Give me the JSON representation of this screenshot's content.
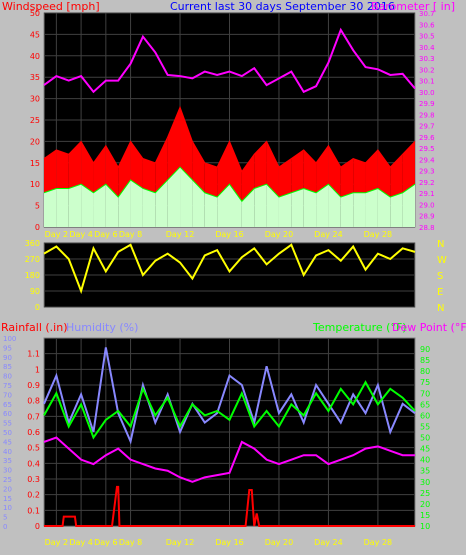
{
  "colors": {
    "background": "#c0c0c0",
    "plot_bg": "#000000",
    "grid": "#404040",
    "title_blue": "#0000ff",
    "red": "#ff0000",
    "magenta": "#ff00ff",
    "green": "#00ff00",
    "light_green": "#ccffcc",
    "gray": "#a0a0a0",
    "yellow": "#ffff00",
    "blue_violet": "#8888ff",
    "day_label_yellow": "#ffff00",
    "compass_yellow": "#ffff00"
  },
  "chart_data": [
    {
      "type": "line",
      "panel": "wind-barometer",
      "title": "Current last 30 days September 30 2016",
      "left_label": "Windspeed [mph]",
      "right_label": "Barometer [ in]",
      "x_tick_labels": [
        "Day 2",
        "Day 4",
        "Day 6",
        "Day 8",
        "Day 12",
        "Day 16",
        "Day 20",
        "Day 24",
        "Day 28"
      ],
      "x_tick_days": [
        2,
        4,
        6,
        8,
        12,
        16,
        20,
        24,
        28
      ],
      "xlim": [
        1,
        31
      ],
      "left_axis": {
        "ylim": [
          0,
          50
        ],
        "ticks": [
          0,
          5,
          10,
          15,
          20,
          25,
          30,
          35,
          40,
          45,
          50
        ]
      },
      "right_axis": {
        "ylim": [
          28.8,
          30.7
        ],
        "ticks": [
          28.8,
          28.9,
          29.0,
          29.1,
          29.2,
          29.3,
          29.4,
          29.5,
          29.6,
          29.7,
          29.8,
          29.9,
          30.0,
          30.1,
          30.2,
          30.3,
          30.4,
          30.5,
          30.6,
          30.7
        ]
      },
      "series": [
        {
          "name": "Barometer",
          "axis": "right",
          "color": "#ff00ff",
          "x": [
            1,
            2,
            3,
            4,
            5,
            6,
            7,
            8,
            9,
            10,
            11,
            12,
            13,
            14,
            15,
            16,
            17,
            18,
            19,
            20,
            21,
            22,
            23,
            24,
            25,
            26,
            27,
            28,
            29,
            30,
            31
          ],
          "values": [
            30.06,
            30.14,
            30.1,
            30.14,
            30.0,
            30.1,
            30.1,
            30.25,
            30.49,
            30.35,
            30.15,
            30.14,
            30.12,
            30.18,
            30.15,
            30.18,
            30.14,
            30.21,
            30.06,
            30.12,
            30.18,
            30.0,
            30.05,
            30.26,
            30.55,
            30.37,
            30.22,
            30.2,
            30.15,
            30.16,
            30.03
          ]
        },
        {
          "name": "Windspeed gust",
          "axis": "left",
          "color": "#ff0000",
          "x": [
            1,
            2,
            3,
            4,
            5,
            6,
            7,
            8,
            9,
            10,
            11,
            12,
            13,
            14,
            15,
            16,
            17,
            18,
            19,
            20,
            21,
            22,
            23,
            24,
            25,
            26,
            27,
            28,
            29,
            30,
            31
          ],
          "values": [
            16,
            18,
            17,
            20,
            15,
            19,
            14,
            20,
            16,
            15,
            21,
            28,
            20,
            15,
            14,
            20,
            13,
            17,
            20,
            14,
            16,
            18,
            15,
            19,
            14,
            16,
            15,
            18,
            14,
            17,
            20
          ]
        },
        {
          "name": "Windspeed average",
          "axis": "left",
          "color": "#00ff00",
          "x": [
            1,
            2,
            3,
            4,
            5,
            6,
            7,
            8,
            9,
            10,
            11,
            12,
            13,
            14,
            15,
            16,
            17,
            18,
            19,
            20,
            21,
            22,
            23,
            24,
            25,
            26,
            27,
            28,
            29,
            30,
            31
          ],
          "values": [
            8,
            9,
            9,
            10,
            8,
            10,
            7,
            11,
            9,
            8,
            11,
            14,
            11,
            8,
            7,
            10,
            6,
            9,
            10,
            7,
            8,
            9,
            8,
            10,
            7,
            8,
            8,
            9,
            7,
            8,
            10
          ]
        }
      ]
    },
    {
      "type": "line",
      "panel": "wind-direction",
      "xlim": [
        1,
        31
      ],
      "ylim": [
        0,
        360
      ],
      "y_ticks": [
        0,
        90,
        180,
        270,
        360
      ],
      "compass_labels": [
        "N",
        "W",
        "S",
        "E",
        "N"
      ],
      "series": [
        {
          "name": "Wind direction",
          "color": "#ffff00",
          "x": [
            1,
            2,
            3,
            4,
            5,
            6,
            7,
            8,
            9,
            10,
            11,
            12,
            13,
            14,
            15,
            16,
            17,
            18,
            19,
            20,
            21,
            22,
            23,
            24,
            25,
            26,
            27,
            28,
            29,
            30,
            31
          ],
          "values": [
            300,
            340,
            270,
            90,
            330,
            200,
            310,
            350,
            180,
            260,
            300,
            250,
            160,
            290,
            320,
            200,
            280,
            330,
            240,
            300,
            350,
            180,
            290,
            320,
            260,
            340,
            210,
            300,
            270,
            330,
            310
          ]
        }
      ]
    },
    {
      "type": "line",
      "panel": "rain-humidity-temperature",
      "labels": [
        "Rainfall (.in)",
        "Humidity (%)",
        "Temperature (°F)",
        "Dew Point (°F)"
      ],
      "x_tick_labels": [
        "Day 2",
        "Day 4",
        "Day 6",
        "Day 8",
        "Day 12",
        "Day 16",
        "Day 20",
        "Day 24",
        "Day 28"
      ],
      "x_tick_days": [
        2,
        4,
        6,
        8,
        12,
        16,
        20,
        24,
        28
      ],
      "xlim": [
        1,
        31
      ],
      "rain_axis": {
        "ylim": [
          0,
          1.2
        ],
        "ticks": [
          0,
          0.1,
          0.2,
          0.3,
          0.4,
          0.5,
          0.6,
          0.7,
          0.8,
          0.9,
          1,
          1.1
        ]
      },
      "humidity_axis": {
        "ylim": [
          0,
          100
        ],
        "ticks": [
          0,
          5,
          10,
          15,
          20,
          25,
          30,
          35,
          40,
          45,
          50,
          55,
          60,
          65,
          70,
          75,
          80,
          85,
          90,
          95,
          100
        ]
      },
      "temperature_axis": {
        "ylim": [
          10,
          95
        ],
        "ticks": [
          10,
          15,
          20,
          25,
          30,
          35,
          40,
          45,
          50,
          55,
          60,
          65,
          70,
          75,
          80,
          85,
          90
        ]
      },
      "series": [
        {
          "name": "Humidity",
          "axis": "humidity",
          "color": "#8888ff",
          "x": [
            1,
            2,
            3,
            4,
            5,
            6,
            7,
            8,
            9,
            10,
            11,
            12,
            13,
            14,
            15,
            16,
            17,
            18,
            19,
            20,
            21,
            22,
            23,
            24,
            25,
            26,
            27,
            28,
            29,
            30,
            31
          ],
          "values": [
            65,
            80,
            55,
            70,
            50,
            95,
            60,
            45,
            75,
            55,
            70,
            50,
            65,
            55,
            60,
            80,
            75,
            55,
            85,
            60,
            70,
            55,
            75,
            65,
            55,
            70,
            60,
            75,
            50,
            65,
            60
          ]
        },
        {
          "name": "Temperature",
          "axis": "temperature",
          "color": "#00ff00",
          "x": [
            1,
            2,
            3,
            4,
            5,
            6,
            7,
            8,
            9,
            10,
            11,
            12,
            13,
            14,
            15,
            16,
            17,
            18,
            19,
            20,
            21,
            22,
            23,
            24,
            25,
            26,
            27,
            28,
            29,
            30,
            31
          ],
          "values": [
            60,
            70,
            55,
            65,
            50,
            58,
            62,
            55,
            72,
            60,
            68,
            55,
            65,
            60,
            62,
            58,
            70,
            55,
            62,
            55,
            65,
            60,
            70,
            62,
            72,
            65,
            75,
            65,
            72,
            68,
            62
          ]
        },
        {
          "name": "Dew Point",
          "axis": "temperature",
          "color": "#ff00ff",
          "x": [
            1,
            2,
            3,
            4,
            5,
            6,
            7,
            8,
            9,
            10,
            11,
            12,
            13,
            14,
            15,
            16,
            17,
            18,
            19,
            20,
            21,
            22,
            23,
            24,
            25,
            26,
            27,
            28,
            29,
            30,
            31
          ],
          "values": [
            48,
            50,
            45,
            40,
            38,
            42,
            45,
            40,
            38,
            36,
            35,
            32,
            30,
            32,
            33,
            34,
            48,
            45,
            40,
            38,
            40,
            42,
            42,
            38,
            40,
            42,
            45,
            46,
            44,
            42,
            42
          ]
        },
        {
          "name": "Rainfall",
          "axis": "rain",
          "color": "#ff0000",
          "x": [
            1,
            2.5,
            2.6,
            3.5,
            3.6,
            6.5,
            6.9,
            7.0,
            7.1,
            17.3,
            17.6,
            17.8,
            18.0,
            18.2,
            18.4,
            31
          ],
          "values": [
            0,
            0,
            0.06,
            0.06,
            0,
            0,
            0.25,
            0.25,
            0,
            0,
            0.23,
            0.23,
            0,
            0.08,
            0,
            0
          ]
        }
      ]
    }
  ]
}
